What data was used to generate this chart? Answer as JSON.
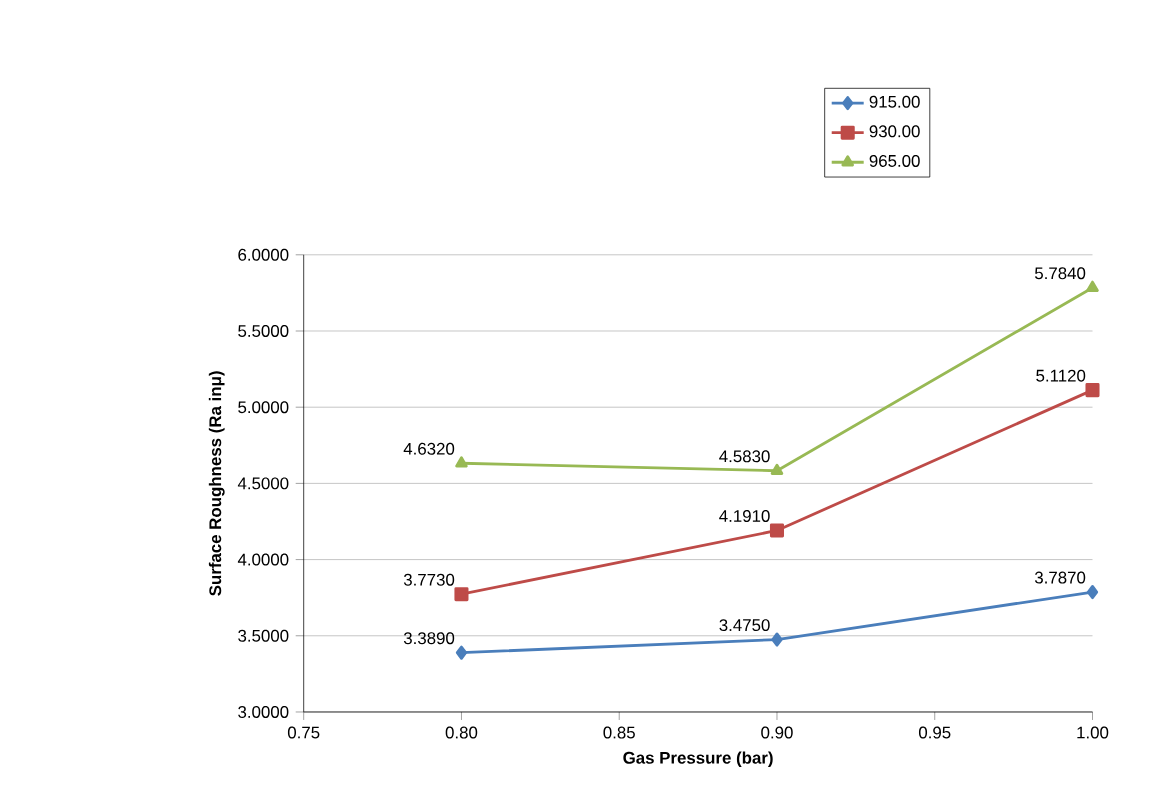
{
  "chart_data": {
    "type": "line",
    "xlabel": "Gas Pressure (bar)",
    "ylabel": "Surface Roughness (Ra inμ)",
    "x": [
      0.8,
      0.9,
      1.0
    ],
    "series": [
      {
        "name": "915.00",
        "color": "#4a7ebb",
        "marker": "diamond",
        "values": [
          3.389,
          3.475,
          3.787
        ],
        "value_labels": [
          "3.3890",
          "3.4750",
          "3.7870"
        ]
      },
      {
        "name": "930.00",
        "color": "#be4b48",
        "marker": "square",
        "values": [
          3.773,
          4.191,
          5.112
        ],
        "value_labels": [
          "3.7730",
          "4.1910",
          "5.1120"
        ]
      },
      {
        "name": "965.00",
        "color": "#98b954",
        "marker": "triangle",
        "values": [
          4.632,
          4.583,
          5.784
        ],
        "value_labels": [
          "4.6320",
          "4.5830",
          "5.7840"
        ]
      }
    ],
    "xlim": [
      0.75,
      1.0
    ],
    "xticks": [
      {
        "value": 0.75,
        "label": "0.75"
      },
      {
        "value": 0.8,
        "label": "0.80"
      },
      {
        "value": 0.85,
        "label": "0.85"
      },
      {
        "value": 0.9,
        "label": "0.90"
      },
      {
        "value": 0.95,
        "label": "0.95"
      },
      {
        "value": 1.0,
        "label": "1.00"
      }
    ],
    "ylim": [
      3.0,
      6.0
    ],
    "yticks": [
      {
        "value": 3.0,
        "label": "3.0000"
      },
      {
        "value": 3.5,
        "label": "3.5000"
      },
      {
        "value": 4.0,
        "label": "4.0000"
      },
      {
        "value": 4.5,
        "label": "4.5000"
      },
      {
        "value": 5.0,
        "label": "5.0000"
      },
      {
        "value": 5.5,
        "label": "5.5000"
      },
      {
        "value": 6.0,
        "label": "6.0000"
      }
    ],
    "grid": "y",
    "legend": "top right"
  }
}
